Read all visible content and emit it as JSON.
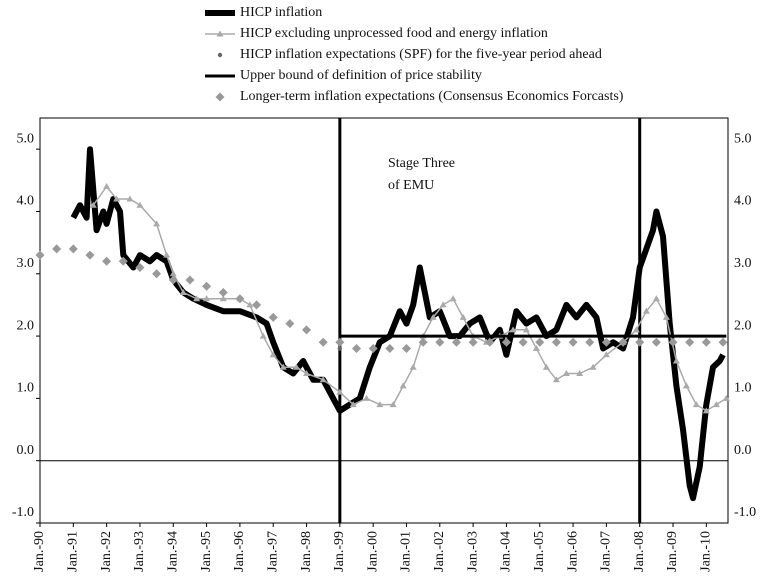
{
  "chart_data": {
    "type": "line",
    "annotation": [
      "Stage Three",
      "of EMU"
    ],
    "vlines": [
      1999,
      2008
    ],
    "xlim": [
      1990,
      2010.65
    ],
    "ylim": [
      -1.0,
      5.5
    ],
    "xticks": [
      {
        "value": 1990,
        "label": "Jan.-90"
      },
      {
        "value": 1991,
        "label": "Jan.-91"
      },
      {
        "value": 1992,
        "label": "Jan.-92"
      },
      {
        "value": 1993,
        "label": "Jan.-93"
      },
      {
        "value": 1994,
        "label": "Jan.-94"
      },
      {
        "value": 1995,
        "label": "Jan.-95"
      },
      {
        "value": 1996,
        "label": "Jan.-96"
      },
      {
        "value": 1997,
        "label": "Jan.-97"
      },
      {
        "value": 1998,
        "label": "Jan.-98"
      },
      {
        "value": 1999,
        "label": "Jan.-99"
      },
      {
        "value": 2000,
        "label": "Jan.-00"
      },
      {
        "value": 2001,
        "label": "Jan.-01"
      },
      {
        "value": 2002,
        "label": "Jan.-02"
      },
      {
        "value": 2003,
        "label": "Jan.-03"
      },
      {
        "value": 2004,
        "label": "Jan.-04"
      },
      {
        "value": 2005,
        "label": "Jan.-05"
      },
      {
        "value": 2006,
        "label": "Jan.-06"
      },
      {
        "value": 2007,
        "label": "Jan.-07"
      },
      {
        "value": 2008,
        "label": "Jan.-08"
      },
      {
        "value": 2009,
        "label": "Jan.-09"
      },
      {
        "value": 2010,
        "label": "Jan.-10"
      }
    ],
    "yticks": [
      {
        "value": -1,
        "label": "-1.0"
      },
      {
        "value": 0,
        "label": "0.0"
      },
      {
        "value": 1,
        "label": "1.0"
      },
      {
        "value": 2,
        "label": "2.0"
      },
      {
        "value": 3,
        "label": "3.0"
      },
      {
        "value": 4,
        "label": "4.0"
      },
      {
        "value": 5,
        "label": "5.0"
      }
    ],
    "grid": false,
    "series": [
      {
        "name": "HICP inflation",
        "color": "#000000",
        "style": "thick",
        "x": [
          1991.0,
          1991.2,
          1991.4,
          1991.5,
          1991.7,
          1991.9,
          1992.0,
          1992.2,
          1992.4,
          1992.5,
          1992.8,
          1993.0,
          1993.3,
          1993.5,
          1993.8,
          1994.0,
          1994.3,
          1994.6,
          1995.0,
          1995.5,
          1996.0,
          1996.5,
          1996.8,
          1997.0,
          1997.3,
          1997.6,
          1997.9,
          1998.2,
          1998.5,
          1998.8,
          1999.0,
          1999.3,
          1999.6,
          1999.9,
          2000.2,
          2000.5,
          2000.8,
          2001.0,
          2001.2,
          2001.4,
          2001.7,
          2002.0,
          2002.3,
          2002.6,
          2002.9,
          2003.2,
          2003.5,
          2003.8,
          2004.0,
          2004.3,
          2004.6,
          2004.9,
          2005.2,
          2005.5,
          2005.8,
          2006.1,
          2006.4,
          2006.7,
          2006.9,
          2007.2,
          2007.5,
          2007.8,
          2008.0,
          2008.2,
          2008.4,
          2008.5,
          2008.7,
          2008.9,
          2009.1,
          2009.3,
          2009.5,
          2009.6,
          2009.8,
          2010.0,
          2010.2,
          2010.4,
          2010.5
        ],
        "values": [
          3.9,
          4.1,
          3.9,
          5.0,
          3.7,
          4.0,
          3.8,
          4.2,
          4.0,
          3.3,
          3.1,
          3.3,
          3.2,
          3.3,
          3.2,
          2.9,
          2.7,
          2.6,
          2.5,
          2.4,
          2.4,
          2.3,
          2.2,
          1.9,
          1.5,
          1.4,
          1.6,
          1.3,
          1.3,
          1.0,
          0.8,
          0.9,
          1.0,
          1.5,
          1.9,
          2.0,
          2.4,
          2.2,
          2.5,
          3.1,
          2.3,
          2.4,
          2.0,
          2.0,
          2.2,
          2.3,
          1.9,
          2.1,
          1.7,
          2.4,
          2.2,
          2.3,
          2.0,
          2.1,
          2.5,
          2.3,
          2.5,
          2.3,
          1.8,
          1.9,
          1.8,
          2.3,
          3.1,
          3.4,
          3.7,
          4.0,
          3.6,
          2.2,
          1.2,
          0.5,
          -0.4,
          -0.6,
          -0.1,
          0.9,
          1.5,
          1.6,
          1.7
        ]
      },
      {
        "name": "HICP excluding unprocessed food and energy inflation",
        "color": "#aaaaaa",
        "style": "triangle-line",
        "x": [
          1991.6,
          1992.0,
          1992.3,
          1992.7,
          1993.0,
          1993.5,
          1993.8,
          1994.0,
          1994.3,
          1994.7,
          1995.0,
          1995.5,
          1996.0,
          1996.3,
          1996.7,
          1997.0,
          1997.3,
          1997.7,
          1998.0,
          1998.5,
          1999.0,
          1999.4,
          1999.8,
          2000.2,
          2000.6,
          2000.9,
          2001.2,
          2001.5,
          2001.8,
          2002.1,
          2002.4,
          2002.7,
          2003.0,
          2003.4,
          2003.8,
          2004.2,
          2004.6,
          2004.9,
          2005.2,
          2005.5,
          2005.8,
          2006.2,
          2006.6,
          2007.0,
          2007.5,
          2007.9,
          2008.2,
          2008.5,
          2008.8,
          2009.1,
          2009.4,
          2009.7,
          2010.0,
          2010.3,
          2010.6
        ],
        "values": [
          4.1,
          4.4,
          4.2,
          4.2,
          4.1,
          3.8,
          3.3,
          3.0,
          2.7,
          2.6,
          2.6,
          2.6,
          2.6,
          2.5,
          2.0,
          1.7,
          1.5,
          1.5,
          1.4,
          1.3,
          1.1,
          0.9,
          1.0,
          0.9,
          0.9,
          1.2,
          1.5,
          2.0,
          2.3,
          2.5,
          2.6,
          2.3,
          2.0,
          1.9,
          2.0,
          2.1,
          2.1,
          1.8,
          1.5,
          1.3,
          1.4,
          1.4,
          1.5,
          1.7,
          1.9,
          2.1,
          2.4,
          2.6,
          2.3,
          1.6,
          1.2,
          0.9,
          0.8,
          0.9,
          1.0
        ]
      },
      {
        "name": "HICP inflation expectations (SPF) for the five-year period ahead",
        "color": "#666666",
        "style": "dot",
        "x": [
          1999.0,
          1999.5,
          2000.0,
          2000.5,
          2001.0,
          2001.5,
          2002.0,
          2002.5,
          2003.0,
          2003.5,
          2004.0,
          2004.5,
          2005.0,
          2005.5,
          2006.0,
          2006.5,
          2007.0,
          2007.5,
          2008.0,
          2008.5,
          2009.0,
          2009.5,
          2010.0,
          2010.5
        ],
        "values": [
          1.8,
          1.8,
          1.8,
          1.8,
          1.8,
          1.9,
          1.9,
          1.9,
          1.9,
          1.9,
          1.9,
          1.9,
          1.9,
          1.9,
          1.9,
          1.9,
          1.9,
          1.9,
          1.9,
          1.9,
          1.9,
          1.9,
          1.9,
          1.9
        ]
      },
      {
        "name": "Upper bound of definition of price stability",
        "color": "#000000",
        "style": "line",
        "x": [
          1999.0,
          2010.6
        ],
        "values": [
          2.0,
          2.0
        ]
      },
      {
        "name": "Longer-term inflation expectations (Consensus Economics Forcasts)",
        "color": "#999999",
        "style": "diamond",
        "x": [
          1990.0,
          1990.5,
          1991.0,
          1991.5,
          1992.0,
          1992.5,
          1993.0,
          1993.5,
          1994.0,
          1994.5,
          1995.0,
          1995.5,
          1996.0,
          1996.5,
          1997.0,
          1997.5,
          1998.0,
          1998.5,
          1999.0,
          1999.5,
          2000.0,
          2000.5,
          2001.0,
          2001.5,
          2002.0,
          2002.5,
          2003.0,
          2003.5,
          2004.0,
          2004.5,
          2005.0,
          2005.5,
          2006.0,
          2006.5,
          2007.0,
          2007.5,
          2008.0,
          2008.5,
          2009.0,
          2009.5,
          2010.0,
          2010.5
        ],
        "values": [
          3.3,
          3.4,
          3.4,
          3.3,
          3.2,
          3.2,
          3.1,
          3.0,
          2.9,
          2.9,
          2.8,
          2.7,
          2.6,
          2.5,
          2.3,
          2.2,
          2.1,
          1.9,
          1.9,
          1.8,
          1.8,
          1.8,
          1.8,
          1.9,
          1.9,
          1.9,
          1.9,
          1.9,
          1.9,
          1.9,
          1.9,
          1.9,
          1.9,
          1.9,
          1.9,
          1.9,
          1.9,
          1.9,
          1.9,
          1.9,
          1.9,
          1.9
        ]
      }
    ]
  }
}
